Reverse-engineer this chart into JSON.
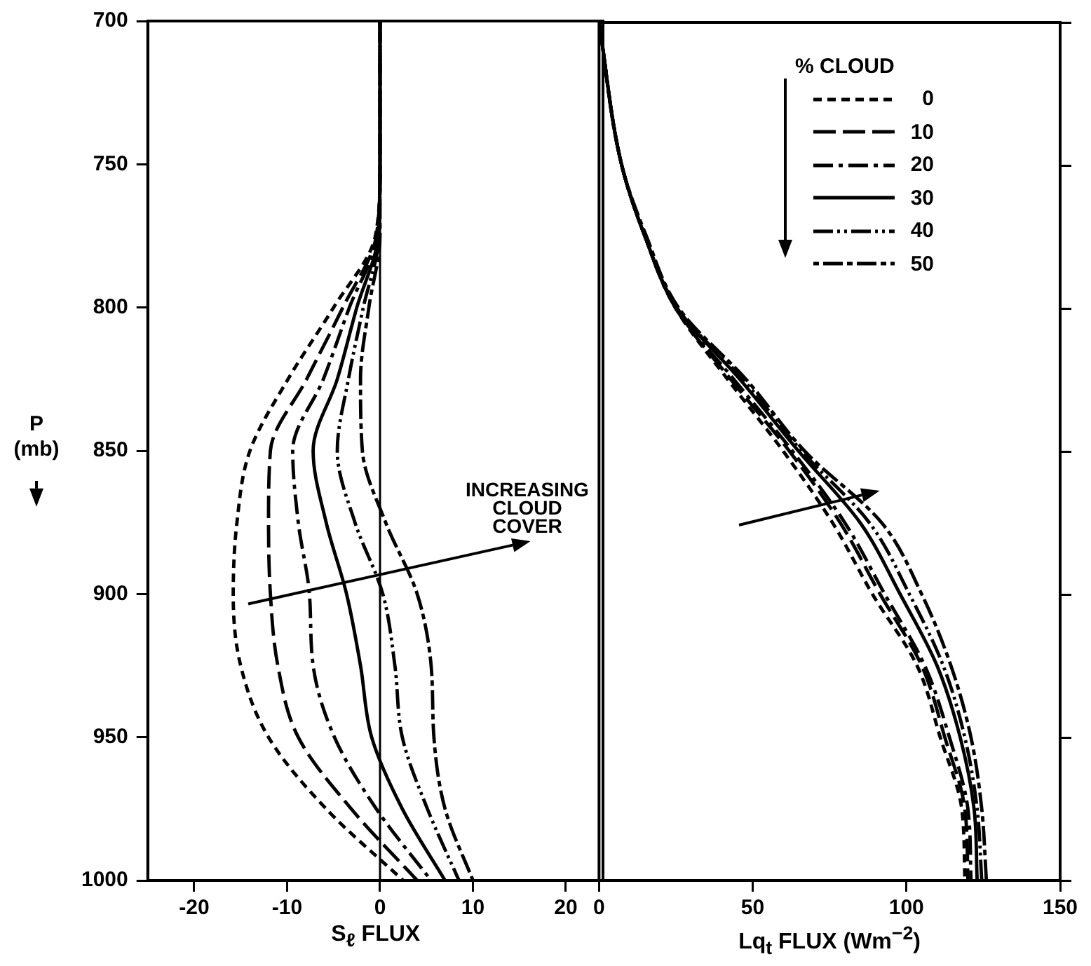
{
  "chart_data": [
    {
      "type": "line",
      "xlabel": "S$_{ℓ}$ FLUX",
      "ylabel": "P (mb)",
      "xlim": [
        -25,
        24
      ],
      "xticks": [
        -20,
        -10,
        0,
        10,
        20
      ],
      "ylim": [
        1000,
        700
      ],
      "yticks": [
        700,
        750,
        800,
        850,
        900,
        950,
        1000
      ],
      "legend": "right",
      "legend_title": "% CLOUD",
      "annotations": [
        "INCREASING CLOUD COVER"
      ],
      "ref_lines": [
        {
          "axis": "x",
          "value": 0
        }
      ],
      "series": [
        {
          "name": "0",
          "color": "#000000",
          "line_style": "dashed",
          "x": [
            0,
            0,
            -0.5,
            -5,
            -9.9,
            -14,
            -15.4,
            -15.8,
            -15,
            -12,
            -5.8,
            2.5
          ],
          "values": [
            700,
            750,
            775,
            800,
            825,
            850,
            875,
            900,
            925,
            950,
            975,
            1000
          ]
        },
        {
          "name": "10",
          "color": "#000000",
          "line_style": "dashed",
          "x": [
            0,
            0,
            -0.4,
            -4,
            -7.9,
            -11.8,
            -12,
            -11.8,
            -11,
            -8.8,
            -3.1,
            4
          ],
          "values": [
            700,
            750,
            775,
            800,
            825,
            850,
            875,
            900,
            925,
            950,
            975,
            1000
          ]
        },
        {
          "name": "20",
          "color": "#000000",
          "line_style": "dashed",
          "x": [
            0,
            0,
            -0.3,
            -3.3,
            -6.1,
            -9.4,
            -8.8,
            -7.6,
            -7.2,
            -4.9,
            -0.4,
            5.5
          ],
          "values": [
            700,
            750,
            775,
            800,
            825,
            850,
            875,
            900,
            925,
            950,
            975,
            1000
          ]
        },
        {
          "name": "30",
          "color": "#000000",
          "line_style": "solid",
          "x": [
            0,
            0,
            -0.2,
            -2.5,
            -4.6,
            -7.2,
            -5.8,
            -3.6,
            -2.1,
            -0.9,
            2.4,
            7
          ],
          "values": [
            700,
            750,
            775,
            800,
            825,
            850,
            875,
            900,
            925,
            950,
            975,
            1000
          ]
        },
        {
          "name": "40",
          "color": "#000000",
          "line_style": "dashed",
          "x": [
            0,
            0,
            -0.1,
            -1.8,
            -3.4,
            -4.6,
            -2.7,
            0.3,
            1.6,
            2.4,
            5.1,
            8.5
          ],
          "values": [
            700,
            750,
            775,
            800,
            825,
            850,
            875,
            900,
            925,
            950,
            975,
            1000
          ]
        },
        {
          "name": "50",
          "color": "#000000",
          "line_style": "dashed",
          "x": [
            0,
            0,
            0,
            -1.2,
            -2.1,
            -1.9,
            0.6,
            4,
            5.5,
            5.8,
            7,
            10
          ],
          "values": [
            700,
            750,
            775,
            800,
            825,
            850,
            875,
            900,
            925,
            950,
            975,
            1000
          ]
        }
      ]
    },
    {
      "type": "line",
      "xlabel": "Lq$_{t}$ FLUX (Wm$^{−2}$)",
      "xlim": [
        0,
        150
      ],
      "xticks": [
        0,
        50,
        100,
        150
      ],
      "ylim": [
        1000,
        700
      ],
      "yticks": [
        700,
        750,
        800,
        850,
        900,
        950,
        1000
      ],
      "tick_labels": "x",
      "series": [
        {
          "name": "0",
          "color": "#000000",
          "line_style": "dashed",
          "x": [
            0,
            7.4,
            15,
            25,
            42,
            60,
            76,
            89,
            103.5,
            111,
            118,
            119
          ],
          "values": [
            700,
            750,
            775,
            800,
            825,
            850,
            875,
            900,
            925,
            950,
            975,
            1000
          ]
        },
        {
          "name": "10",
          "color": "#000000",
          "line_style": "dashed",
          "x": [
            0,
            7.4,
            15,
            25,
            43,
            62,
            78.5,
            91.5,
            105,
            112.5,
            119,
            120
          ],
          "values": [
            700,
            750,
            775,
            800,
            825,
            850,
            875,
            900,
            925,
            950,
            975,
            1000
          ]
        },
        {
          "name": "20",
          "color": "#000000",
          "line_style": "dashed",
          "x": [
            0,
            7.4,
            15,
            25,
            44,
            63,
            80,
            93,
            106,
            114,
            120,
            121
          ],
          "values": [
            700,
            750,
            775,
            800,
            825,
            850,
            875,
            900,
            925,
            950,
            975,
            1000
          ]
        },
        {
          "name": "30",
          "color": "#000000",
          "line_style": "solid",
          "x": [
            0,
            7.4,
            15,
            25.5,
            46,
            65,
            85,
            98,
            110,
            117.5,
            122,
            123
          ],
          "values": [
            700,
            750,
            775,
            800,
            825,
            850,
            875,
            900,
            925,
            950,
            975,
            1000
          ]
        },
        {
          "name": "40",
          "color": "#000000",
          "line_style": "dashed",
          "x": [
            0,
            7.4,
            15,
            25.5,
            47,
            66,
            88,
            101,
            112,
            119,
            123,
            124.5
          ],
          "values": [
            700,
            750,
            775,
            800,
            825,
            850,
            875,
            900,
            925,
            950,
            975,
            1000
          ]
        },
        {
          "name": "50",
          "color": "#000000",
          "line_style": "dashed",
          "x": [
            0,
            7.4,
            15.5,
            26,
            48,
            67,
            92,
            105,
            114.5,
            121,
            124.5,
            126
          ],
          "values": [
            700,
            750,
            775,
            800,
            825,
            850,
            875,
            900,
            925,
            950,
            975,
            1000
          ]
        }
      ]
    }
  ]
}
